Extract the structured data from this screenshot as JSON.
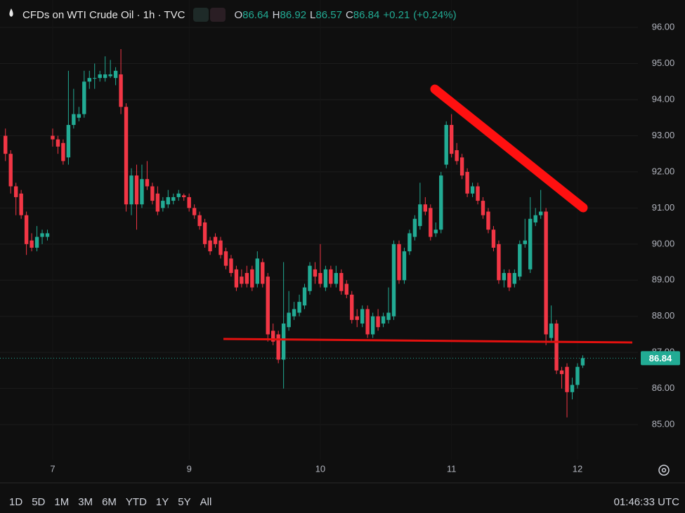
{
  "header": {
    "title": "CFDs on WTI Crude Oil · 1h · TVC",
    "labels": [
      "O",
      "H",
      "L",
      "C"
    ],
    "values": [
      86.64,
      86.92,
      86.57,
      86.84
    ],
    "change": "+0.21",
    "change_percent": "(+0.24%)"
  },
  "chart_data": {
    "type": "candlestick",
    "up_color": "#22ab94",
    "down_color": "#f23645",
    "categories": [
      null,
      null,
      null,
      null,
      null,
      null,
      null,
      null,
      null,
      "7",
      null,
      null,
      null,
      null,
      null,
      null,
      null,
      null,
      null,
      null,
      null,
      null,
      null,
      null,
      null,
      null,
      null,
      null,
      null,
      null,
      null,
      null,
      null,
      null,
      null,
      "9",
      null,
      null,
      null,
      null,
      null,
      null,
      null,
      null,
      null,
      null,
      null,
      null,
      null,
      null,
      null,
      null,
      null,
      null,
      null,
      null,
      null,
      null,
      null,
      null,
      "10",
      null,
      null,
      null,
      null,
      null,
      null,
      null,
      null,
      null,
      null,
      null,
      null,
      null,
      null,
      null,
      null,
      null,
      null,
      null,
      null,
      null,
      null,
      null,
      null,
      "11",
      null,
      null,
      null,
      null,
      null,
      null,
      null,
      null,
      null,
      null,
      null,
      null,
      null,
      null,
      null,
      null,
      null,
      null,
      null,
      null,
      null,
      null,
      null,
      "12",
      null
    ],
    "open": [
      93.0,
      92.5,
      91.6,
      91.4,
      90.8,
      90.1,
      89.9,
      90.2,
      90.2,
      93.0,
      92.9,
      92.8,
      92.4,
      93.3,
      93.5,
      93.6,
      94.5,
      94.6,
      94.6,
      94.6,
      94.65,
      94.6,
      94.7,
      93.8,
      91.1,
      91.9,
      91.1,
      91.8,
      91.6,
      91.4,
      91.0,
      91.1,
      91.2,
      91.3,
      91.35,
      91.3,
      91.0,
      90.8,
      90.6,
      90.1,
      90.2,
      90.1,
      89.8,
      89.6,
      89.3,
      89.1,
      89.2,
      89.3,
      88.9,
      89.5,
      89.1,
      87.6,
      87.5,
      86.8,
      87.7,
      88.0,
      88.1,
      88.3,
      88.7,
      89.3,
      89.2,
      88.8,
      89.3,
      88.9,
      89.2,
      88.9,
      88.6,
      88.0,
      87.8,
      88.2,
      87.5,
      88.0,
      87.8,
      87.9,
      88.0,
      90.0,
      89.0,
      89.8,
      90.2,
      90.5,
      91.1,
      91.0,
      90.3,
      90.4,
      92.2,
      93.3,
      92.6,
      92.4,
      92.0,
      91.4,
      91.6,
      91.2,
      90.9,
      90.4,
      90.0,
      89.0,
      89.2,
      88.9,
      89.1,
      90.0,
      89.3,
      90.6,
      90.8,
      90.9,
      87.4,
      87.8,
      86.5,
      86.6,
      85.9,
      86.1,
      86.64
    ],
    "high": [
      93.2,
      92.6,
      91.7,
      91.5,
      90.9,
      90.3,
      90.5,
      90.4,
      90.4,
      93.2,
      93.0,
      92.9,
      94.8,
      94.3,
      93.8,
      94.8,
      94.8,
      95.0,
      94.8,
      95.2,
      95.1,
      94.9,
      95.4,
      93.9,
      92.1,
      92.2,
      92.2,
      92.3,
      91.7,
      91.6,
      91.3,
      91.5,
      91.4,
      91.5,
      91.4,
      91.4,
      91.1,
      90.9,
      90.7,
      90.2,
      90.3,
      90.2,
      89.9,
      89.7,
      89.4,
      89.3,
      89.4,
      89.4,
      89.8,
      89.6,
      89.2,
      87.8,
      87.6,
      89.5,
      88.7,
      88.4,
      88.6,
      88.9,
      89.5,
      89.5,
      90.0,
      89.4,
      89.4,
      89.4,
      89.3,
      89.0,
      88.7,
      88.2,
      88.3,
      88.3,
      88.1,
      88.2,
      88.1,
      88.8,
      90.1,
      90.1,
      89.9,
      90.4,
      90.8,
      91.7,
      91.3,
      91.1,
      90.6,
      92.0,
      93.4,
      93.6,
      92.8,
      92.5,
      92.1,
      91.7,
      91.7,
      91.3,
      91.0,
      90.5,
      90.1,
      89.3,
      89.3,
      89.3,
      90.1,
      90.7,
      91.3,
      91.0,
      91.5,
      91.0,
      88.3,
      87.9,
      86.6,
      86.7,
      86.3,
      86.7,
      86.92
    ],
    "low": [
      92.3,
      91.4,
      90.8,
      90.7,
      89.7,
      89.8,
      89.8,
      90.0,
      90.1,
      92.7,
      92.5,
      92.2,
      92.2,
      93.2,
      93.4,
      93.5,
      94.3,
      94.3,
      94.5,
      94.5,
      94.6,
      94.4,
      93.6,
      90.9,
      90.8,
      90.4,
      91.0,
      91.5,
      91.1,
      90.8,
      90.9,
      91.0,
      91.1,
      91.2,
      91.2,
      90.9,
      90.7,
      90.4,
      89.9,
      89.7,
      89.9,
      89.6,
      89.3,
      89.1,
      88.7,
      88.8,
      88.8,
      88.7,
      88.8,
      88.8,
      87.3,
      87.2,
      86.7,
      86.0,
      87.6,
      87.9,
      88.0,
      88.2,
      88.6,
      88.9,
      88.8,
      88.7,
      88.8,
      88.8,
      88.6,
      88.5,
      87.8,
      87.7,
      87.7,
      87.4,
      87.4,
      87.6,
      87.7,
      87.8,
      87.9,
      88.9,
      88.9,
      89.7,
      90.1,
      90.4,
      90.8,
      90.1,
      90.2,
      90.3,
      92.1,
      92.4,
      92.2,
      91.8,
      91.3,
      91.3,
      91.1,
      90.7,
      90.3,
      89.8,
      88.9,
      88.8,
      88.7,
      88.8,
      89.0,
      89.9,
      89.2,
      90.5,
      90.7,
      87.2,
      87.3,
      86.4,
      86.0,
      85.2,
      85.7,
      86.0,
      86.57
    ],
    "close": [
      92.5,
      91.6,
      91.3,
      90.8,
      90.0,
      89.9,
      90.2,
      90.3,
      90.3,
      92.9,
      92.7,
      92.3,
      93.3,
      93.6,
      93.6,
      94.5,
      94.6,
      94.6,
      94.7,
      94.7,
      94.7,
      94.8,
      93.8,
      91.1,
      91.9,
      91.1,
      91.8,
      91.6,
      91.2,
      90.9,
      91.2,
      91.3,
      91.3,
      91.4,
      91.3,
      91.0,
      90.8,
      90.5,
      90.0,
      89.8,
      90.0,
      89.7,
      89.4,
      89.2,
      88.8,
      88.9,
      88.9,
      88.8,
      89.6,
      88.9,
      87.5,
      87.3,
      86.8,
      87.8,
      88.1,
      88.2,
      88.4,
      88.8,
      89.4,
      89.1,
      88.9,
      89.3,
      88.9,
      89.2,
      88.7,
      88.6,
      87.9,
      87.9,
      88.2,
      87.5,
      88.0,
      87.7,
      88.0,
      88.1,
      90.0,
      89.0,
      89.8,
      90.3,
      90.7,
      91.1,
      90.9,
      90.2,
      90.4,
      91.9,
      93.3,
      92.5,
      92.3,
      91.9,
      91.4,
      91.6,
      91.2,
      90.8,
      90.4,
      89.9,
      89.0,
      89.2,
      88.8,
      89.2,
      90.0,
      90.1,
      90.7,
      90.8,
      90.9,
      87.5,
      87.8,
      86.5,
      86.4,
      85.9,
      86.1,
      86.6,
      86.84
    ],
    "ylim": [
      84.03,
      96.76
    ],
    "yticks": [
      {
        "value": 85,
        "label": "85.00"
      },
      {
        "value": 86,
        "label": "86.00"
      },
      {
        "value": 87,
        "label": "87.00"
      },
      {
        "value": 88,
        "label": "88.00"
      },
      {
        "value": 89,
        "label": "89.00"
      },
      {
        "value": 90,
        "label": "90.00"
      },
      {
        "value": 91,
        "label": "91.00"
      },
      {
        "value": 92,
        "label": "92.00"
      },
      {
        "value": 93,
        "label": "93.00"
      },
      {
        "value": 94,
        "label": "94.00"
      },
      {
        "value": 95,
        "label": "95.00"
      },
      {
        "value": 96,
        "label": "96.00"
      }
    ],
    "grid": true
  },
  "toolbar": {
    "ranges": [
      "1D",
      "5D",
      "1M",
      "3M",
      "6M",
      "YTD",
      "1Y",
      "5Y",
      "All"
    ],
    "clock": "01:46:33 UTC"
  }
}
